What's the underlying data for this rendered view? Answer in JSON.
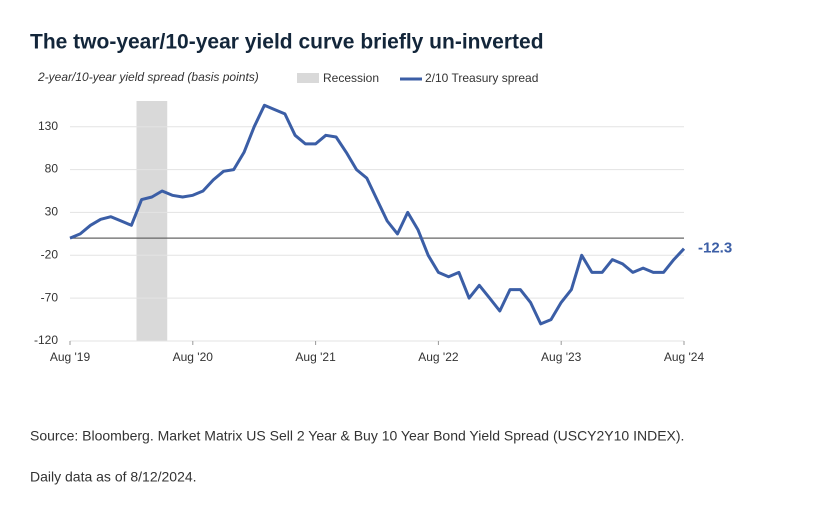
{
  "chart_data": {
    "type": "line",
    "title": "The two-year/10-year yield curve briefly un-inverted",
    "y_label": "2-year/10-year yield spread (basis points)",
    "x": [
      "2019-08",
      "2019-09",
      "2019-10",
      "2019-11",
      "2019-12",
      "2020-01",
      "2020-02",
      "2020-03",
      "2020-04",
      "2020-05",
      "2020-06",
      "2020-07",
      "2020-08",
      "2020-09",
      "2020-10",
      "2020-11",
      "2020-12",
      "2021-01",
      "2021-02",
      "2021-03",
      "2021-04",
      "2021-05",
      "2021-06",
      "2021-07",
      "2021-08",
      "2021-09",
      "2021-10",
      "2021-11",
      "2021-12",
      "2022-01",
      "2022-02",
      "2022-03",
      "2022-04",
      "2022-05",
      "2022-06",
      "2022-07",
      "2022-08",
      "2022-09",
      "2022-10",
      "2022-11",
      "2022-12",
      "2023-01",
      "2023-02",
      "2023-03",
      "2023-04",
      "2023-05",
      "2023-06",
      "2023-07",
      "2023-08",
      "2023-09",
      "2023-10",
      "2023-11",
      "2023-12",
      "2024-01",
      "2024-02",
      "2024-03",
      "2024-04",
      "2024-05",
      "2024-06",
      "2024-07",
      "2024-08"
    ],
    "series": [
      {
        "name": "2/10 Treasury spread",
        "color": "#3b5ea6",
        "values": [
          0,
          5,
          15,
          22,
          25,
          20,
          15,
          45,
          48,
          55,
          50,
          48,
          50,
          55,
          68,
          78,
          80,
          100,
          130,
          155,
          150,
          145,
          120,
          110,
          110,
          120,
          118,
          100,
          80,
          70,
          45,
          20,
          5,
          30,
          10,
          -20,
          -40,
          -45,
          -40,
          -70,
          -55,
          -70,
          -85,
          -60,
          -60,
          -75,
          -100,
          -95,
          -75,
          -60,
          -20,
          -40,
          -40,
          -25,
          -30,
          -40,
          -35,
          -40,
          -40,
          -25,
          -12.3
        ]
      }
    ],
    "shading": {
      "name": "Recession",
      "color": "#d9d9d9",
      "x": [
        "2020-02",
        "2020-05"
      ]
    },
    "reference_line": 0,
    "ylim": [
      -120,
      160
    ],
    "yticks": [
      130,
      80,
      30,
      -20,
      -70,
      -120
    ],
    "xlim": [
      "2019-08",
      "2024-08"
    ],
    "xticks": [
      {
        "value": "2019-08",
        "label": "Aug '19"
      },
      {
        "value": "2020-08",
        "label": "Aug '20"
      },
      {
        "value": "2021-08",
        "label": "Aug '21"
      },
      {
        "value": "2022-08",
        "label": "Aug '22"
      },
      {
        "value": "2023-08",
        "label": "Aug '23"
      },
      {
        "value": "2024-08",
        "label": "Aug '24"
      }
    ],
    "grid": true
  },
  "source": "Source: Bloomberg. Market Matrix US Sell 2 Year & Buy 10 Year Bond Yield Spread (USCY2Y10 INDEX).",
  "note": "Daily data as of 8/12/2024."
}
